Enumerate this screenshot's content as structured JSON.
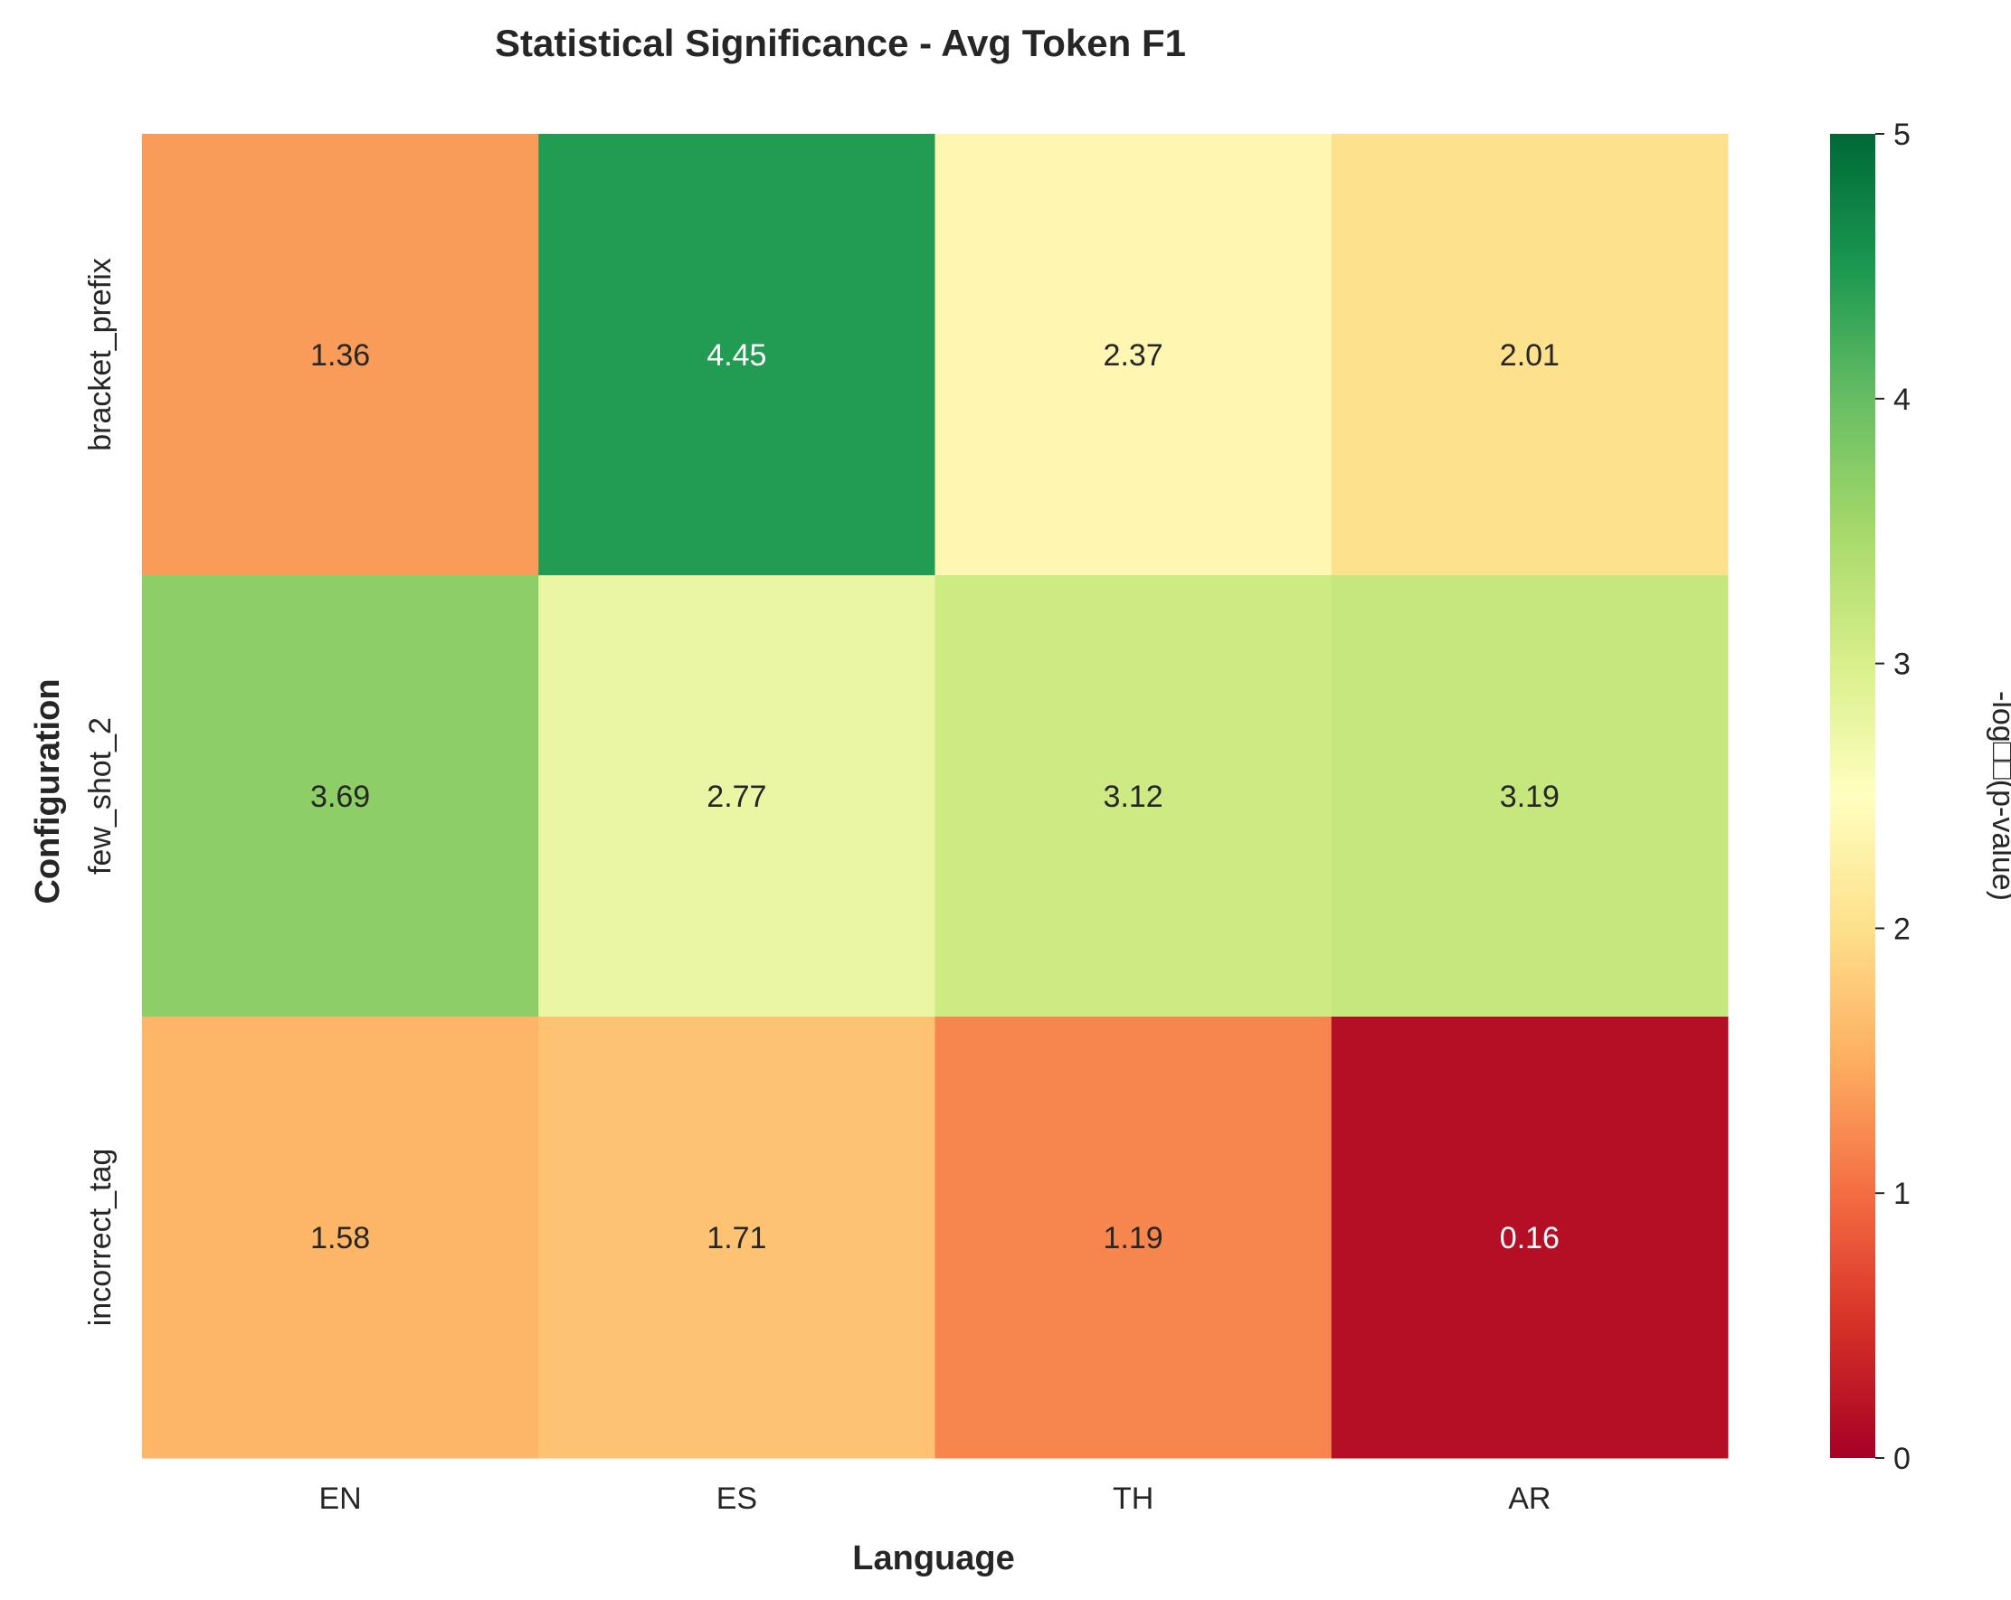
{
  "chart_data": {
    "type": "heatmap",
    "title": "Statistical Significance - Avg Token F1",
    "xlabel": "Language",
    "ylabel": "Configuration",
    "x_categories": [
      "EN",
      "ES",
      "TH",
      "AR"
    ],
    "y_categories": [
      "bracket_prefix",
      "few_shot_2",
      "incorrect_tag"
    ],
    "values": [
      [
        1.36,
        4.45,
        2.37,
        2.01
      ],
      [
        3.69,
        2.77,
        3.12,
        3.19
      ],
      [
        1.58,
        1.71,
        1.19,
        0.16
      ]
    ],
    "value_labels": [
      [
        "1.36",
        "4.45",
        "2.37",
        "2.01"
      ],
      [
        "3.69",
        "2.77",
        "3.12",
        "3.19"
      ],
      [
        "1.58",
        "1.71",
        "1.19",
        "0.16"
      ]
    ],
    "colorbar": {
      "label": "-log□□(p-value)",
      "range": [
        0,
        5
      ],
      "ticks": [
        "0",
        "1",
        "2",
        "3",
        "4",
        "5"
      ],
      "colormap": "RdYlGn"
    },
    "grid": false
  }
}
